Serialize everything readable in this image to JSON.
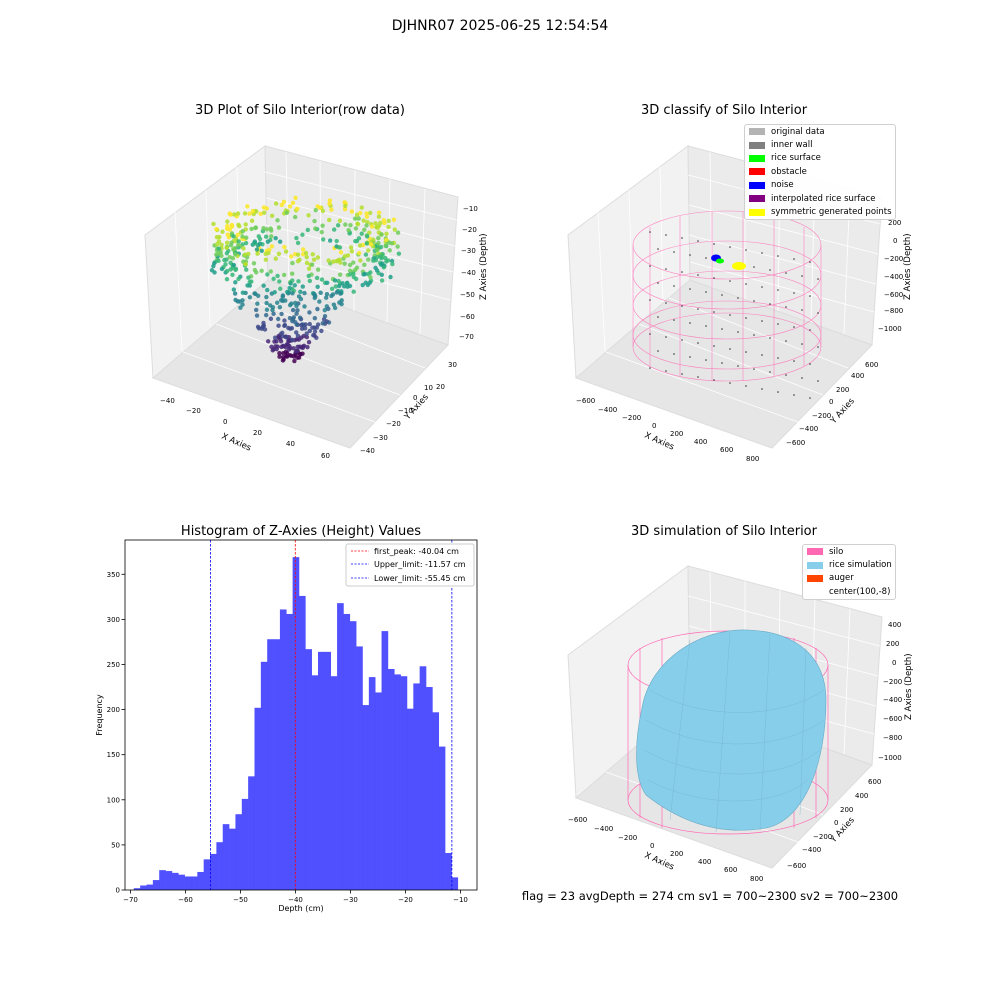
{
  "figure_title": "DJHNR07 2025-06-25 12:54:54",
  "footer": "flag = 23  avgDepth = 274 cm  sv1 = 700~2300  sv2 = 700~2300",
  "colors": {
    "bar": "#4d4dff",
    "peak_line": "#ff0000",
    "limit_line": "#0000ff",
    "silo": "#ff69b4",
    "rice": "#87ceeb"
  },
  "chart_data": [
    {
      "type": "scatter",
      "subtype": "3d",
      "title": "3D Plot of Silo Interior(row data)",
      "xlabel": "X Axies",
      "ylabel": "Y Axies",
      "zlabel": "Z Axies (Depth)",
      "x_ticks": [
        "−40",
        "−20",
        "0",
        "20",
        "40",
        "60"
      ],
      "y_ticks": [
        "30",
        "20",
        "10",
        "0",
        "−10",
        "−20",
        "−30",
        "−40"
      ],
      "z_ticks": [
        "−10",
        "−20",
        "−30",
        "−40",
        "−50",
        "−60",
        "−70"
      ],
      "colormap": "viridis"
    },
    {
      "type": "scatter",
      "subtype": "3d",
      "title": "3D classify of Silo Interior",
      "xlabel": "X Axies",
      "ylabel": "Y Axies",
      "zlabel": "Z Axies (Depth)",
      "x_ticks": [
        "−600",
        "−400",
        "−200",
        "0",
        "200",
        "400",
        "600",
        "800"
      ],
      "y_ticks": [
        "600",
        "400",
        "200",
        "0",
        "−200",
        "−400",
        "−600"
      ],
      "z_ticks": [
        "200",
        "0",
        "−200",
        "−400",
        "−600",
        "−800",
        "−1000"
      ],
      "legend": [
        {
          "label": "original data",
          "color": "#b3b3b3"
        },
        {
          "label": "inner wall",
          "color": "#808080"
        },
        {
          "label": "rice surface",
          "color": "#00ff00"
        },
        {
          "label": "obstacle",
          "color": "#ff0000"
        },
        {
          "label": "noise",
          "color": "#0000ff"
        },
        {
          "label": "interpolated rice surface",
          "color": "#800080"
        },
        {
          "label": "symmetric generated points",
          "color": "#ffff00"
        }
      ]
    },
    {
      "type": "bar",
      "subtype": "histogram",
      "title": "Histogram of Z-Axies (Height) Values",
      "xlabel": "Depth (cm)",
      "ylabel": "Frequency",
      "xlim": [
        -71,
        -7
      ],
      "ylim": [
        0,
        388
      ],
      "x_ticks": [
        -70,
        -60,
        -50,
        -40,
        -30,
        -20,
        -10
      ],
      "y_ticks": [
        0,
        50,
        100,
        150,
        200,
        250,
        300,
        350
      ],
      "bin_start": -69.4,
      "bin_width": 1.155,
      "values": [
        2,
        5,
        6,
        11,
        22,
        21,
        19,
        17,
        15,
        15,
        20,
        34,
        40,
        53,
        73,
        68,
        84,
        101,
        126,
        202,
        253,
        278,
        278,
        311,
        306,
        369,
        326,
        267,
        238,
        264,
        264,
        237,
        318,
        306,
        298,
        270,
        205,
        236,
        219,
        287,
        245,
        239,
        237,
        201,
        229,
        248,
        225,
        197,
        159,
        41,
        14
      ],
      "annotations": [
        {
          "label": "first_peak: -40.04 cm",
          "x": -40.04,
          "style": "red dashed"
        },
        {
          "label": "Upper_limit: -11.57 cm",
          "x": -11.57,
          "style": "blue dashed"
        },
        {
          "label": "Lower_limit: -55.45 cm",
          "x": -55.45,
          "style": "blue dashed"
        }
      ]
    },
    {
      "type": "scatter",
      "subtype": "3d-surface",
      "title": "3D simulation of Silo Interior",
      "xlabel": "X Axies",
      "ylabel": "Y Axies",
      "zlabel": "Z Axies (Depth)",
      "x_ticks": [
        "−600",
        "−400",
        "−200",
        "0",
        "200",
        "400",
        "600",
        "800"
      ],
      "y_ticks": [
        "600",
        "400",
        "200",
        "0",
        "−200",
        "−400",
        "−600"
      ],
      "z_ticks": [
        "400",
        "200",
        "0",
        "−200",
        "−400",
        "−600",
        "−800",
        "−1000"
      ],
      "legend": [
        {
          "label": "silo",
          "color": "#ff69b4"
        },
        {
          "label": "rice simulation",
          "color": "#87ceeb"
        },
        {
          "label": "auger",
          "color": "#ff4500"
        },
        {
          "label": "center(100,-8)",
          "color": "#ffffff"
        }
      ]
    }
  ]
}
